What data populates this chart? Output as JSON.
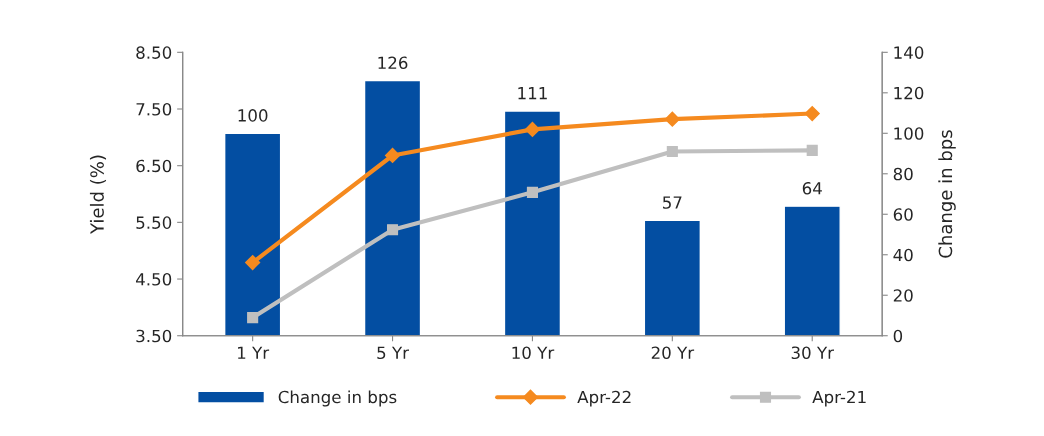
{
  "chart_data": {
    "type": "bar",
    "ylabel": "Yield (%)",
    "y2label": "Change in bps",
    "categories": [
      "1 Yr",
      "5 Yr",
      "10 Yr",
      "20 Yr",
      "30 Yr"
    ],
    "series": [
      {
        "name": "Change in bps",
        "axis": "y2",
        "color": "#034ea2",
        "values": [
          100,
          126,
          111,
          57,
          64
        ],
        "value_labels": [
          "100",
          "126",
          "111",
          "57",
          "64"
        ]
      },
      {
        "name": "Apr-22",
        "type": "line",
        "axis": "y",
        "color": "#f58a1f",
        "marker": "diamond",
        "values": [
          4.79,
          6.68,
          7.14,
          7.32,
          7.42
        ]
      },
      {
        "name": "Apr-21",
        "type": "line",
        "axis": "y",
        "color": "#bfbfbf",
        "marker": "square",
        "values": [
          3.82,
          5.37,
          6.03,
          6.75,
          6.77
        ]
      }
    ],
    "ylim": [
      3.5,
      8.5
    ],
    "yticks": [
      {
        "value": 3.5,
        "label": "3.50"
      },
      {
        "value": 4.5,
        "label": "4.50"
      },
      {
        "value": 5.5,
        "label": "5.50"
      },
      {
        "value": 6.5,
        "label": "6.50"
      },
      {
        "value": 7.5,
        "label": "7.50"
      },
      {
        "value": 8.5,
        "label": "8.50"
      }
    ],
    "y2lim": [
      0,
      140
    ],
    "y2ticks": [
      0,
      20,
      40,
      60,
      80,
      100,
      120,
      140
    ],
    "grid": false,
    "legend": "bottom"
  }
}
